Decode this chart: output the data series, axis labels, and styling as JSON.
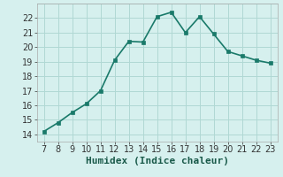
{
  "x": [
    7,
    8,
    9,
    10,
    11,
    12,
    13,
    14,
    15,
    16,
    17,
    18,
    19,
    20,
    21,
    22,
    23
  ],
  "y": [
    14.2,
    14.8,
    15.5,
    16.1,
    17.0,
    19.1,
    20.4,
    20.35,
    22.1,
    22.4,
    21.0,
    22.1,
    20.9,
    19.7,
    19.4,
    19.1,
    18.9
  ],
  "line_color": "#1a7a6a",
  "marker_color": "#1a7a6a",
  "bg_color": "#d6f0ee",
  "grid_color": "#b0d8d4",
  "xlabel": "Humidex (Indice chaleur)",
  "xlim": [
    6.5,
    23.5
  ],
  "ylim": [
    13.5,
    23.0
  ],
  "yticks": [
    14,
    15,
    16,
    17,
    18,
    19,
    20,
    21,
    22
  ],
  "xticks": [
    7,
    8,
    9,
    10,
    11,
    12,
    13,
    14,
    15,
    16,
    17,
    18,
    19,
    20,
    21,
    22,
    23
  ],
  "xlabel_fontsize": 8,
  "tick_fontsize": 7,
  "line_width": 1.2,
  "marker_size": 2.8
}
